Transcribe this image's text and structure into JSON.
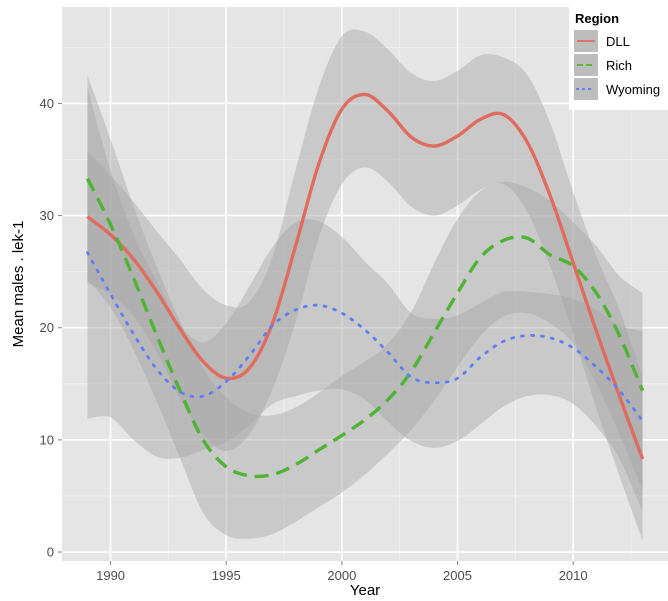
{
  "chart_data": {
    "type": "line",
    "title": "",
    "xlabel": "Year",
    "ylabel": "Mean males . lek-1",
    "xlim": [
      1987.9,
      2014.1
    ],
    "ylim": [
      -0.8,
      48.6
    ],
    "x_ticks": [
      1990,
      1995,
      2000,
      2005,
      2010
    ],
    "y_ticks": [
      0,
      10,
      20,
      30,
      40
    ],
    "grid": true,
    "background": "#e5e5e5",
    "legend": {
      "title": "Region",
      "position": "top-right"
    },
    "band_color": "#a6a6a6",
    "series": [
      {
        "name": "DLL",
        "color": "#e06b5f",
        "dash": "solid",
        "x": [
          1989,
          1990,
          1991,
          1992,
          1993,
          1994,
          1995,
          1996,
          1997,
          1998,
          1999,
          2000,
          2001,
          2002,
          2003,
          2004,
          2005,
          2006,
          2007,
          2008,
          2009,
          2010,
          2011,
          2012,
          2013
        ],
        "values": [
          29.9,
          28.3,
          26.1,
          23.2,
          19.9,
          17.0,
          15.5,
          16.4,
          20.4,
          27.3,
          34.6,
          39.5,
          40.8,
          39.3,
          37.0,
          36.2,
          37.1,
          38.6,
          39.0,
          36.6,
          31.8,
          25.8,
          19.7,
          13.9,
          8.3
        ],
        "lower": [
          24.0,
          23.0,
          21.0,
          17.8,
          13.7,
          10.5,
          9.0,
          10.5,
          14.5,
          20.5,
          28.0,
          32.8,
          34.3,
          33.0,
          30.8,
          30.0,
          30.9,
          32.3,
          32.8,
          30.4,
          25.5,
          19.4,
          12.8,
          6.8,
          1.0
        ],
        "upper": [
          35.7,
          33.6,
          31.2,
          28.6,
          26.1,
          23.4,
          22.0,
          22.3,
          26.3,
          34.1,
          41.4,
          46.0,
          46.4,
          44.8,
          42.7,
          42.0,
          42.9,
          44.3,
          44.1,
          42.6,
          38.3,
          32.1,
          26.4,
          21.6,
          15.6
        ]
      },
      {
        "name": "Rich",
        "color": "#4fb334",
        "dash": "dashed",
        "x": [
          1989,
          1990,
          1991,
          1992,
          1993,
          1994,
          1995,
          1996,
          1997,
          1998,
          1999,
          2000,
          2001,
          2002,
          2003,
          2004,
          2005,
          2006,
          2007,
          2008,
          2009,
          2010,
          2011,
          2012,
          2013
        ],
        "values": [
          33.3,
          29.2,
          24.4,
          19.3,
          14.4,
          10.0,
          7.6,
          6.8,
          6.9,
          7.8,
          9.1,
          10.4,
          11.8,
          13.6,
          16.1,
          19.6,
          23.1,
          26.3,
          27.8,
          28.0,
          26.5,
          25.5,
          23.1,
          19.3,
          14.4
        ],
        "lower": [
          24.3,
          21.8,
          18.0,
          13.4,
          8.4,
          3.5,
          1.5,
          1.2,
          1.6,
          2.7,
          4.0,
          5.3,
          6.9,
          8.8,
          10.9,
          13.5,
          16.5,
          19.3,
          21.0,
          21.3,
          20.4,
          18.6,
          15.0,
          10.5,
          5.5
        ],
        "upper": [
          42.5,
          36.8,
          30.8,
          25.4,
          20.6,
          16.4,
          13.8,
          12.4,
          12.2,
          12.9,
          14.2,
          15.7,
          17.0,
          18.6,
          21.4,
          25.8,
          29.7,
          32.2,
          33.0,
          32.5,
          31.3,
          29.4,
          27.3,
          24.6,
          23.1
        ]
      },
      {
        "name": "Wyoming",
        "color": "#5e7ef5",
        "dash": "dotted",
        "x": [
          1989,
          1990,
          1991,
          1992,
          1993,
          1994,
          1995,
          1996,
          1997,
          1998,
          1999,
          2000,
          2001,
          2002,
          2003,
          2004,
          2005,
          2006,
          2007,
          2008,
          2009,
          2010,
          2011,
          2012,
          2013
        ],
        "values": [
          26.7,
          23.0,
          19.4,
          16.3,
          14.3,
          13.9,
          15.2,
          17.5,
          20.2,
          21.6,
          22.0,
          21.3,
          19.8,
          17.8,
          15.6,
          15.1,
          15.5,
          17.4,
          18.8,
          19.3,
          19.1,
          18.2,
          16.5,
          14.4,
          11.7
        ],
        "lower": [
          11.9,
          12.0,
          10.0,
          8.5,
          8.4,
          9.1,
          9.8,
          11.3,
          13.2,
          13.9,
          14.4,
          14.5,
          13.6,
          11.6,
          9.9,
          9.3,
          9.9,
          11.4,
          13.0,
          13.9,
          14.0,
          13.2,
          11.2,
          8.3,
          3.6
        ],
        "upper": [
          41.4,
          34.0,
          28.3,
          24.1,
          20.3,
          18.7,
          20.4,
          23.7,
          27.2,
          29.4,
          29.5,
          28.1,
          25.9,
          23.9,
          21.3,
          20.8,
          21.1,
          22.2,
          23.2,
          23.2,
          23.0,
          22.6,
          21.6,
          20.2,
          19.7
        ]
      }
    ]
  }
}
